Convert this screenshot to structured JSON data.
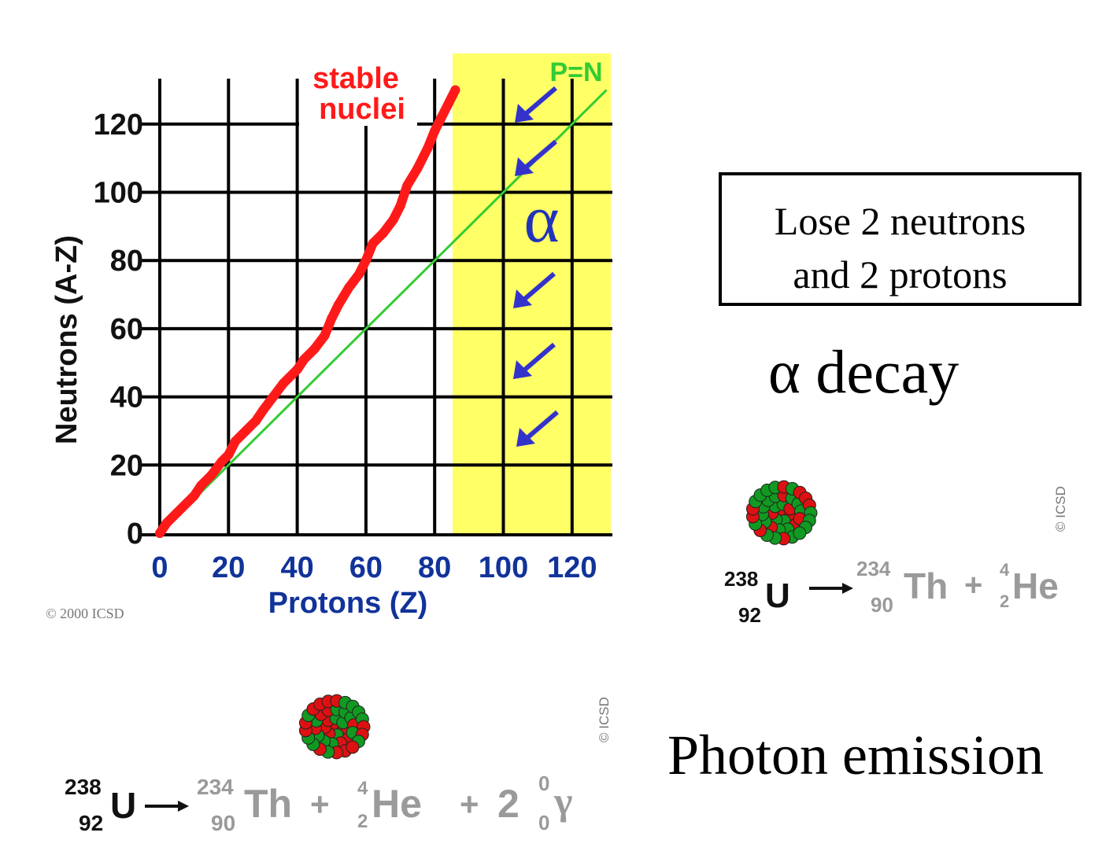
{
  "chart_data": {
    "type": "scatter",
    "xlabel": "Protons  (Z)",
    "ylabel": "Neutrons  (A-Z)",
    "x_ticks": [
      "0",
      "20",
      "40",
      "60",
      "80",
      "100",
      "120"
    ],
    "y_ticks": [
      "0",
      "20",
      "40",
      "60",
      "80",
      "100",
      "120"
    ],
    "xlim": [
      0,
      132
    ],
    "ylim": [
      0,
      130
    ],
    "grid": true,
    "series": [
      {
        "name": "stable nuclei",
        "color": "#ff0000",
        "points": [
          [
            0,
            0
          ],
          [
            2,
            3
          ],
          [
            5,
            6
          ],
          [
            8,
            9
          ],
          [
            10,
            11
          ],
          [
            12,
            14
          ],
          [
            15,
            17
          ],
          [
            18,
            21
          ],
          [
            20,
            23
          ],
          [
            22,
            27
          ],
          [
            25,
            30
          ],
          [
            28,
            33
          ],
          [
            30,
            36
          ],
          [
            33,
            40
          ],
          [
            36,
            44
          ],
          [
            40,
            48
          ],
          [
            42,
            51
          ],
          [
            45,
            54
          ],
          [
            48,
            58
          ],
          [
            50,
            63
          ],
          [
            52,
            67
          ],
          [
            55,
            72
          ],
          [
            58,
            76
          ],
          [
            60,
            80
          ],
          [
            62,
            85
          ],
          [
            65,
            88
          ],
          [
            68,
            92
          ],
          [
            70,
            96
          ],
          [
            72,
            102
          ],
          [
            75,
            107
          ],
          [
            78,
            113
          ],
          [
            80,
            118
          ],
          [
            82,
            122
          ],
          [
            84,
            126
          ],
          [
            86,
            130
          ]
        ]
      },
      {
        "name": "P=N",
        "color": "#33cc33",
        "points": [
          [
            0,
            0
          ],
          [
            130,
            130
          ]
        ]
      }
    ],
    "annotations": {
      "stable_label_line1": "stable",
      "stable_label_line2": "nuclei",
      "pn_label": "P=N",
      "alpha_symbol": "α"
    },
    "highlight_region": {
      "x_from": 86,
      "x_to": 132,
      "color": "#ffff66"
    },
    "arrow_color": "#3333cc"
  },
  "copyright": "© 2000  ICSD",
  "info_box": {
    "line1": "Lose 2 neutrons",
    "line2": "and 2 protons"
  },
  "alpha_title": "α decay",
  "photon_title": "Photon emission",
  "icsd_label": "© ICSD",
  "equation_alpha": {
    "u_mass": "238",
    "u_atomic": "92",
    "u_symbol": "U",
    "th_mass": "234",
    "th_atomic": "90",
    "th_symbol": "Th",
    "plus": "+",
    "he_mass": "4",
    "he_atomic": "2",
    "he_symbol": "He"
  },
  "equation_photon": {
    "u_mass": "238",
    "u_atomic": "92",
    "u_symbol": "U",
    "th_mass": "234",
    "th_atomic": "90",
    "th_symbol": "Th",
    "plus": "+",
    "he_mass": "4",
    "he_atomic": "2",
    "he_symbol": "He",
    "gamma_coef": "2",
    "gamma_mass": "0",
    "gamma_atomic": "0",
    "gamma_symbol": "γ"
  },
  "colors": {
    "proton": "#dd1111",
    "neutron": "#119922"
  }
}
